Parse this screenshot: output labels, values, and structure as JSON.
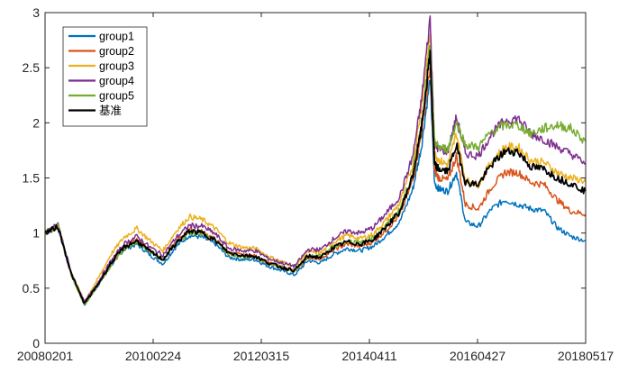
{
  "chart_data": {
    "type": "line",
    "title": "",
    "xlabel": "",
    "ylabel": "",
    "ylim": [
      0,
      3
    ],
    "yticks": [
      "0",
      "0.5",
      "1",
      "1.5",
      "2",
      "2.5",
      "3"
    ],
    "x_tick_labels": [
      "20080201",
      "20100224",
      "20120315",
      "20140411",
      "20160427",
      "20180517"
    ],
    "x_range": [
      "2008-02-01",
      "2018-05-17"
    ],
    "grid": false,
    "legend_position": "top-left",
    "x": [
      "2008-02-01",
      "2008-05-01",
      "2008-08-01",
      "2008-11-01",
      "2009-02-01",
      "2009-05-01",
      "2009-08-01",
      "2009-11-01",
      "2010-02-01",
      "2010-05-01",
      "2010-08-01",
      "2010-11-01",
      "2011-02-01",
      "2011-05-01",
      "2011-08-01",
      "2011-11-01",
      "2012-02-01",
      "2012-05-01",
      "2012-08-01",
      "2012-11-01",
      "2013-02-01",
      "2013-05-01",
      "2013-08-01",
      "2013-11-01",
      "2014-02-01",
      "2014-05-01",
      "2014-08-01",
      "2014-11-01",
      "2015-02-01",
      "2015-04-01",
      "2015-06-01",
      "2015-07-01",
      "2015-08-01",
      "2015-10-01",
      "2015-12-01",
      "2016-02-01",
      "2016-05-01",
      "2016-08-01",
      "2016-11-01",
      "2017-02-01",
      "2017-05-01",
      "2017-08-01",
      "2017-11-01",
      "2018-02-01",
      "2018-05-17"
    ],
    "series": [
      {
        "name": "group1",
        "color": "#0072BD",
        "values": [
          1.0,
          1.05,
          0.62,
          0.35,
          0.52,
          0.7,
          0.85,
          0.9,
          0.8,
          0.72,
          0.88,
          0.98,
          0.96,
          0.9,
          0.78,
          0.76,
          0.76,
          0.7,
          0.66,
          0.62,
          0.75,
          0.73,
          0.81,
          0.86,
          0.84,
          0.88,
          0.98,
          1.1,
          1.4,
          1.78,
          2.4,
          1.45,
          1.4,
          1.38,
          1.55,
          1.1,
          1.06,
          1.22,
          1.3,
          1.26,
          1.22,
          1.2,
          1.05,
          0.97,
          0.93
        ]
      },
      {
        "name": "group2",
        "color": "#D95319",
        "values": [
          1.0,
          1.06,
          0.63,
          0.36,
          0.54,
          0.73,
          0.88,
          0.94,
          0.84,
          0.76,
          0.92,
          1.03,
          1.01,
          0.94,
          0.82,
          0.8,
          0.79,
          0.73,
          0.69,
          0.65,
          0.78,
          0.77,
          0.85,
          0.9,
          0.88,
          0.92,
          1.03,
          1.16,
          1.48,
          1.9,
          2.5,
          1.56,
          1.5,
          1.48,
          1.7,
          1.26,
          1.22,
          1.42,
          1.55,
          1.55,
          1.46,
          1.44,
          1.3,
          1.2,
          1.17
        ]
      },
      {
        "name": "group3",
        "color": "#EDB120",
        "values": [
          1.0,
          1.07,
          0.64,
          0.38,
          0.58,
          0.8,
          0.96,
          1.04,
          0.93,
          0.84,
          1.02,
          1.15,
          1.12,
          1.04,
          0.91,
          0.87,
          0.86,
          0.79,
          0.74,
          0.7,
          0.83,
          0.82,
          0.92,
          0.98,
          0.95,
          0.99,
          1.12,
          1.27,
          1.62,
          2.15,
          2.8,
          1.72,
          1.66,
          1.62,
          1.9,
          1.48,
          1.44,
          1.65,
          1.78,
          1.78,
          1.66,
          1.64,
          1.55,
          1.5,
          1.47
        ]
      },
      {
        "name": "group4",
        "color": "#7E2F8E",
        "values": [
          1.0,
          1.08,
          0.64,
          0.37,
          0.55,
          0.74,
          0.9,
          0.97,
          0.87,
          0.8,
          0.96,
          1.07,
          1.06,
          0.99,
          0.86,
          0.84,
          0.84,
          0.77,
          0.73,
          0.7,
          0.85,
          0.85,
          0.95,
          1.02,
          1.0,
          1.05,
          1.18,
          1.33,
          1.7,
          2.2,
          2.95,
          1.8,
          1.76,
          1.74,
          2.05,
          1.72,
          1.7,
          1.9,
          2.02,
          2.04,
          1.9,
          1.85,
          1.78,
          1.72,
          1.63
        ]
      },
      {
        "name": "group5",
        "color": "#77AC30",
        "values": [
          1.0,
          1.06,
          0.62,
          0.35,
          0.52,
          0.7,
          0.85,
          0.92,
          0.83,
          0.76,
          0.91,
          1.0,
          0.99,
          0.93,
          0.81,
          0.79,
          0.78,
          0.72,
          0.69,
          0.66,
          0.79,
          0.79,
          0.88,
          0.93,
          0.91,
          0.96,
          1.07,
          1.21,
          1.55,
          1.98,
          2.7,
          1.82,
          1.78,
          1.76,
          2.0,
          1.8,
          1.78,
          1.92,
          1.98,
          1.98,
          1.9,
          1.95,
          1.98,
          1.95,
          1.83
        ]
      },
      {
        "name": "基准",
        "color": "#000000",
        "values": [
          1.0,
          1.06,
          0.63,
          0.36,
          0.53,
          0.72,
          0.87,
          0.93,
          0.83,
          0.76,
          0.91,
          1.02,
          1.0,
          0.93,
          0.82,
          0.8,
          0.79,
          0.73,
          0.69,
          0.66,
          0.79,
          0.78,
          0.87,
          0.92,
          0.9,
          0.94,
          1.06,
          1.19,
          1.52,
          1.95,
          2.62,
          1.62,
          1.58,
          1.56,
          1.8,
          1.46,
          1.44,
          1.62,
          1.74,
          1.74,
          1.6,
          1.58,
          1.5,
          1.45,
          1.38
        ]
      }
    ]
  }
}
